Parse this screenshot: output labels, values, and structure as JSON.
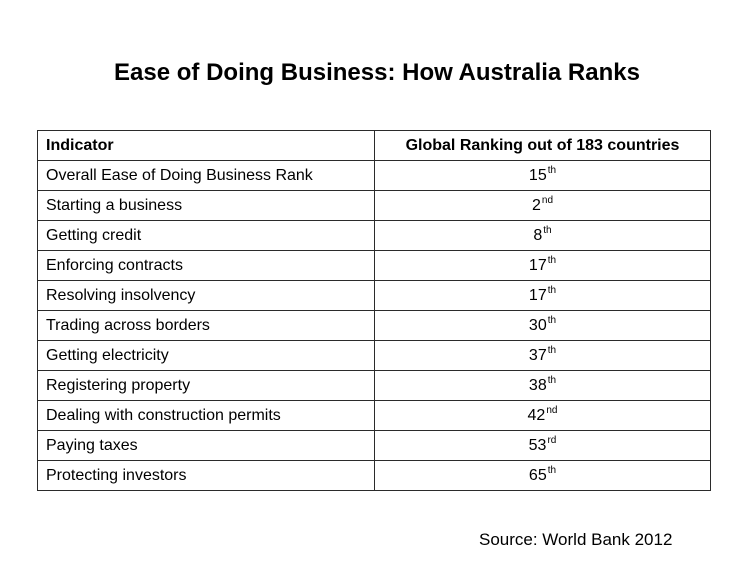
{
  "title": "Ease of Doing Business: How Australia Ranks",
  "table": {
    "headers": {
      "indicator": "Indicator",
      "ranking": "Global Ranking out of 183 countries"
    },
    "rows": [
      {
        "indicator": "Overall Ease of Doing Business Rank",
        "rank": "15",
        "suffix": "th"
      },
      {
        "indicator": "Starting a business",
        "rank": "2",
        "suffix": "nd"
      },
      {
        "indicator": "Getting credit",
        "rank": "8",
        "suffix": "th"
      },
      {
        "indicator": "Enforcing contracts",
        "rank": "17",
        "suffix": "th"
      },
      {
        "indicator": "Resolving insolvency",
        "rank": "17",
        "suffix": "th"
      },
      {
        "indicator": "Trading across borders",
        "rank": "30",
        "suffix": "th"
      },
      {
        "indicator": "Getting electricity",
        "rank": "37",
        "suffix": "th"
      },
      {
        "indicator": "Registering property",
        "rank": "38",
        "suffix": "th"
      },
      {
        "indicator": "Dealing with construction permits",
        "rank": "42",
        "suffix": "nd"
      },
      {
        "indicator": "Paying taxes",
        "rank": "53",
        "suffix": "rd"
      },
      {
        "indicator": "Protecting investors",
        "rank": "65",
        "suffix": "th"
      }
    ]
  },
  "source": "Source: World Bank 2012"
}
